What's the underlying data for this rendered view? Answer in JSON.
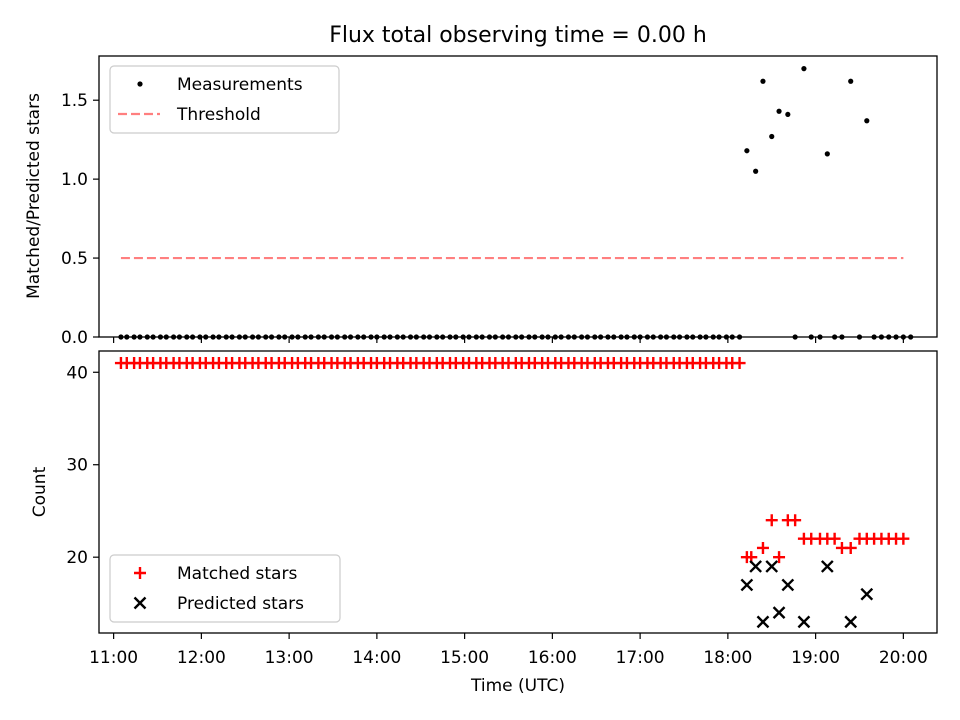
{
  "figure_title": "Flux total observing time = 0.00 h",
  "chart_data": [
    {
      "type": "scatter",
      "title": "Flux total observing time = 0.00 h",
      "xlabel": "",
      "ylabel": "Matched/Predicted stars",
      "xlim": [
        "10:50",
        "20:23"
      ],
      "ylim": [
        0,
        1.78
      ],
      "y_ticks": [
        "0.0",
        "0.5",
        "1.0",
        "1.5"
      ],
      "grid": false,
      "legend_position": "upper-left",
      "series": [
        {
          "name": "Measurements",
          "marker": "dot",
          "color": "#000000",
          "points": [
            [
              "11:05",
              0
            ],
            [
              "11:09",
              0
            ],
            [
              "11:14",
              0
            ],
            [
              "11:18",
              0
            ],
            [
              "11:23",
              0
            ],
            [
              "11:27",
              0
            ],
            [
              "11:32",
              0
            ],
            [
              "11:36",
              0
            ],
            [
              "11:41",
              0
            ],
            [
              "11:45",
              0
            ],
            [
              "11:50",
              0
            ],
            [
              "11:54",
              0
            ],
            [
              "11:59",
              0
            ],
            [
              "12:03",
              0
            ],
            [
              "12:08",
              0
            ],
            [
              "12:12",
              0
            ],
            [
              "12:17",
              0
            ],
            [
              "12:21",
              0
            ],
            [
              "12:26",
              0
            ],
            [
              "12:30",
              0
            ],
            [
              "12:35",
              0
            ],
            [
              "12:39",
              0
            ],
            [
              "12:44",
              0
            ],
            [
              "12:48",
              0
            ],
            [
              "12:53",
              0
            ],
            [
              "12:57",
              0
            ],
            [
              "13:02",
              0
            ],
            [
              "13:06",
              0
            ],
            [
              "13:11",
              0
            ],
            [
              "13:15",
              0
            ],
            [
              "13:20",
              0
            ],
            [
              "13:24",
              0
            ],
            [
              "13:29",
              0
            ],
            [
              "13:33",
              0
            ],
            [
              "13:38",
              0
            ],
            [
              "13:42",
              0
            ],
            [
              "13:47",
              0
            ],
            [
              "13:51",
              0
            ],
            [
              "13:56",
              0
            ],
            [
              "14:00",
              0
            ],
            [
              "14:05",
              0
            ],
            [
              "14:09",
              0
            ],
            [
              "14:14",
              0
            ],
            [
              "14:18",
              0
            ],
            [
              "14:23",
              0
            ],
            [
              "14:27",
              0
            ],
            [
              "14:32",
              0
            ],
            [
              "14:36",
              0
            ],
            [
              "14:41",
              0
            ],
            [
              "14:45",
              0
            ],
            [
              "14:50",
              0
            ],
            [
              "14:54",
              0
            ],
            [
              "14:59",
              0
            ],
            [
              "15:03",
              0
            ],
            [
              "15:08",
              0
            ],
            [
              "15:12",
              0
            ],
            [
              "15:17",
              0
            ],
            [
              "15:21",
              0
            ],
            [
              "15:26",
              0
            ],
            [
              "15:30",
              0
            ],
            [
              "15:35",
              0
            ],
            [
              "15:39",
              0
            ],
            [
              "15:44",
              0
            ],
            [
              "15:48",
              0
            ],
            [
              "15:53",
              0
            ],
            [
              "15:57",
              0
            ],
            [
              "16:02",
              0
            ],
            [
              "16:06",
              0
            ],
            [
              "16:11",
              0
            ],
            [
              "16:15",
              0
            ],
            [
              "16:20",
              0
            ],
            [
              "16:24",
              0
            ],
            [
              "16:29",
              0
            ],
            [
              "16:33",
              0
            ],
            [
              "16:38",
              0
            ],
            [
              "16:42",
              0
            ],
            [
              "16:47",
              0
            ],
            [
              "16:51",
              0
            ],
            [
              "16:56",
              0
            ],
            [
              "17:00",
              0
            ],
            [
              "17:05",
              0
            ],
            [
              "17:09",
              0
            ],
            [
              "17:14",
              0
            ],
            [
              "17:18",
              0
            ],
            [
              "17:23",
              0
            ],
            [
              "17:27",
              0
            ],
            [
              "17:32",
              0
            ],
            [
              "17:36",
              0
            ],
            [
              "17:41",
              0
            ],
            [
              "17:45",
              0
            ],
            [
              "17:50",
              0
            ],
            [
              "17:54",
              0
            ],
            [
              "17:59",
              0
            ],
            [
              "18:03",
              0
            ],
            [
              "18:08",
              0
            ],
            [
              "18:13",
              1.18
            ],
            [
              "18:19",
              1.05
            ],
            [
              "18:24",
              1.62
            ],
            [
              "18:30",
              1.27
            ],
            [
              "18:35",
              1.43
            ],
            [
              "18:41",
              1.41
            ],
            [
              "18:46",
              0
            ],
            [
              "18:52",
              1.7
            ],
            [
              "18:57",
              0
            ],
            [
              "19:03",
              0
            ],
            [
              "19:08",
              1.16
            ],
            [
              "19:13",
              0
            ],
            [
              "19:18",
              0
            ],
            [
              "19:24",
              1.62
            ],
            [
              "19:30",
              0
            ],
            [
              "19:35",
              1.37
            ],
            [
              "19:40",
              0
            ],
            [
              "19:45",
              0
            ],
            [
              "19:50",
              0
            ],
            [
              "19:55",
              0
            ],
            [
              "20:00",
              0
            ],
            [
              "20:05",
              0
            ]
          ]
        },
        {
          "name": "Threshold",
          "style": "dashed-line",
          "color": "#ff7f7f",
          "points": [
            [
              "11:05",
              0.5
            ],
            [
              "20:00",
              0.5
            ]
          ]
        }
      ]
    },
    {
      "type": "scatter",
      "title": "",
      "xlabel": "Time (UTC)",
      "ylabel": "Count",
      "xlim": [
        "10:50",
        "20:23"
      ],
      "ylim": [
        11.8,
        42.3
      ],
      "x_ticks": [
        "11:00",
        "12:00",
        "13:00",
        "14:00",
        "15:00",
        "16:00",
        "17:00",
        "18:00",
        "19:00",
        "20:00"
      ],
      "y_ticks": [
        "20",
        "30",
        "40"
      ],
      "grid": false,
      "legend_position": "lower-left",
      "series": [
        {
          "name": "Matched stars",
          "marker": "plus",
          "color": "#ff0000",
          "points": [
            [
              "11:05",
              41
            ],
            [
              "11:09",
              41
            ],
            [
              "11:14",
              41
            ],
            [
              "11:18",
              41
            ],
            [
              "11:23",
              41
            ],
            [
              "11:27",
              41
            ],
            [
              "11:32",
              41
            ],
            [
              "11:36",
              41
            ],
            [
              "11:41",
              41
            ],
            [
              "11:45",
              41
            ],
            [
              "11:50",
              41
            ],
            [
              "11:54",
              41
            ],
            [
              "11:59",
              41
            ],
            [
              "12:03",
              41
            ],
            [
              "12:08",
              41
            ],
            [
              "12:12",
              41
            ],
            [
              "12:17",
              41
            ],
            [
              "12:21",
              41
            ],
            [
              "12:26",
              41
            ],
            [
              "12:30",
              41
            ],
            [
              "12:35",
              41
            ],
            [
              "12:39",
              41
            ],
            [
              "12:44",
              41
            ],
            [
              "12:48",
              41
            ],
            [
              "12:53",
              41
            ],
            [
              "12:57",
              41
            ],
            [
              "13:02",
              41
            ],
            [
              "13:06",
              41
            ],
            [
              "13:11",
              41
            ],
            [
              "13:15",
              41
            ],
            [
              "13:20",
              41
            ],
            [
              "13:24",
              41
            ],
            [
              "13:29",
              41
            ],
            [
              "13:33",
              41
            ],
            [
              "13:38",
              41
            ],
            [
              "13:42",
              41
            ],
            [
              "13:47",
              41
            ],
            [
              "13:51",
              41
            ],
            [
              "13:56",
              41
            ],
            [
              "14:00",
              41
            ],
            [
              "14:05",
              41
            ],
            [
              "14:09",
              41
            ],
            [
              "14:14",
              41
            ],
            [
              "14:18",
              41
            ],
            [
              "14:23",
              41
            ],
            [
              "14:27",
              41
            ],
            [
              "14:32",
              41
            ],
            [
              "14:36",
              41
            ],
            [
              "14:41",
              41
            ],
            [
              "14:45",
              41
            ],
            [
              "14:50",
              41
            ],
            [
              "14:54",
              41
            ],
            [
              "14:59",
              41
            ],
            [
              "15:03",
              41
            ],
            [
              "15:08",
              41
            ],
            [
              "15:12",
              41
            ],
            [
              "15:17",
              41
            ],
            [
              "15:21",
              41
            ],
            [
              "15:26",
              41
            ],
            [
              "15:30",
              41
            ],
            [
              "15:35",
              41
            ],
            [
              "15:39",
              41
            ],
            [
              "15:44",
              41
            ],
            [
              "15:48",
              41
            ],
            [
              "15:53",
              41
            ],
            [
              "15:57",
              41
            ],
            [
              "16:02",
              41
            ],
            [
              "16:06",
              41
            ],
            [
              "16:11",
              41
            ],
            [
              "16:15",
              41
            ],
            [
              "16:20",
              41
            ],
            [
              "16:24",
              41
            ],
            [
              "16:29",
              41
            ],
            [
              "16:33",
              41
            ],
            [
              "16:38",
              41
            ],
            [
              "16:42",
              41
            ],
            [
              "16:47",
              41
            ],
            [
              "16:51",
              41
            ],
            [
              "16:56",
              41
            ],
            [
              "17:00",
              41
            ],
            [
              "17:05",
              41
            ],
            [
              "17:09",
              41
            ],
            [
              "17:14",
              41
            ],
            [
              "17:18",
              41
            ],
            [
              "17:23",
              41
            ],
            [
              "17:27",
              41
            ],
            [
              "17:32",
              41
            ],
            [
              "17:36",
              41
            ],
            [
              "17:41",
              41
            ],
            [
              "17:45",
              41
            ],
            [
              "17:50",
              41
            ],
            [
              "17:54",
              41
            ],
            [
              "17:59",
              41
            ],
            [
              "18:03",
              41
            ],
            [
              "18:08",
              41
            ],
            [
              "18:13",
              20
            ],
            [
              "18:16",
              20
            ],
            [
              "18:24",
              21
            ],
            [
              "18:30",
              24
            ],
            [
              "18:35",
              20
            ],
            [
              "18:41",
              24
            ],
            [
              "18:46",
              24
            ],
            [
              "18:52",
              22
            ],
            [
              "18:57",
              22
            ],
            [
              "19:03",
              22
            ],
            [
              "19:08",
              22
            ],
            [
              "19:13",
              22
            ],
            [
              "19:18",
              21
            ],
            [
              "19:24",
              21
            ],
            [
              "19:30",
              22
            ],
            [
              "19:35",
              22
            ],
            [
              "19:40",
              22
            ],
            [
              "19:45",
              22
            ],
            [
              "19:50",
              22
            ],
            [
              "19:55",
              22
            ],
            [
              "20:00",
              22
            ]
          ]
        },
        {
          "name": "Predicted stars",
          "marker": "x",
          "color": "#000000",
          "points": [
            [
              "18:13",
              17
            ],
            [
              "18:19",
              19
            ],
            [
              "18:24",
              13
            ],
            [
              "18:30",
              19
            ],
            [
              "18:35",
              14
            ],
            [
              "18:41",
              17
            ],
            [
              "18:52",
              13
            ],
            [
              "19:08",
              19
            ],
            [
              "19:24",
              13
            ],
            [
              "19:35",
              16
            ]
          ]
        }
      ]
    }
  ]
}
